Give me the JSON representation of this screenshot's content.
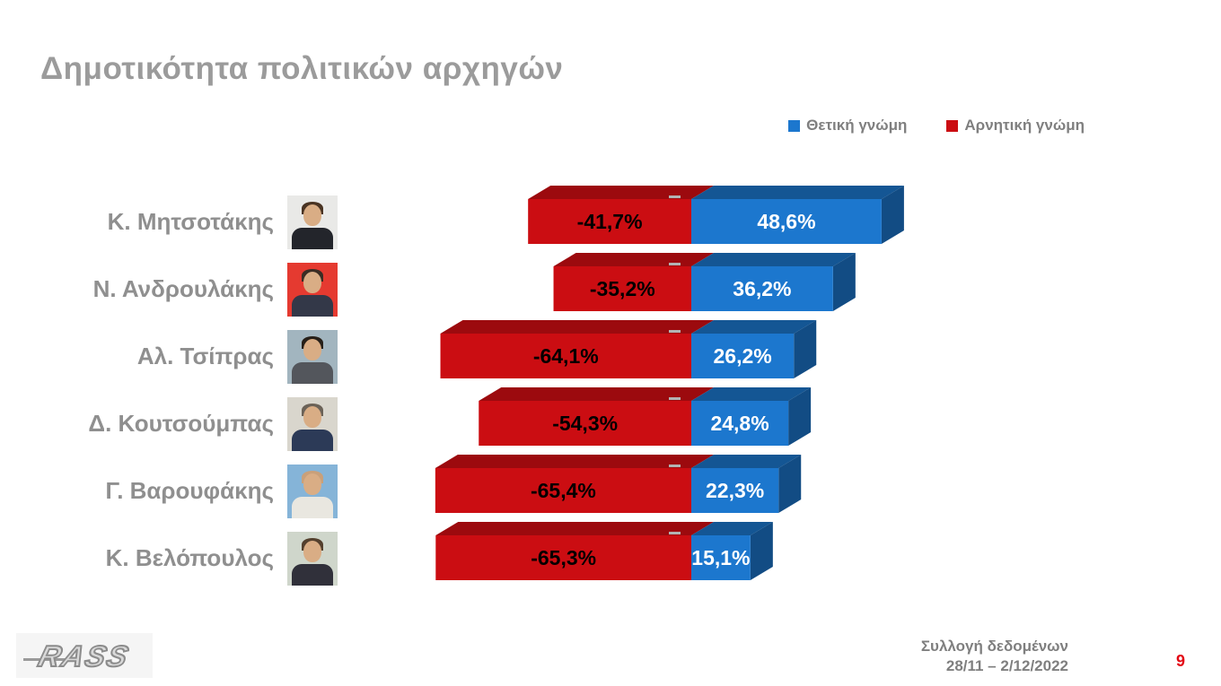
{
  "title": "Δημοτικότητα πολιτικών αρχηγών",
  "chart_data": {
    "type": "bar",
    "subtype": "horizontal-diverging-3d",
    "title": "Δημοτικότητα πολιτικών αρχηγών",
    "legend_position": "top-right",
    "grid": false,
    "value_axis_range": [
      -80,
      55
    ],
    "series": [
      {
        "name": "Θετική γνώμη",
        "direction": "positive",
        "color": "#1c77ce"
      },
      {
        "name": "Αρνητική γνώμη",
        "direction": "negative",
        "color": "#cb0d12"
      }
    ],
    "categories": [
      "Κ. Μητσοτάκης",
      "Ν. Ανδρουλάκης",
      "Αλ. Τσίπρας",
      "Δ. Κουτσούμπας",
      "Γ. Βαρουφάκης",
      "Κ. Βελόπουλος"
    ],
    "rows": [
      {
        "category": "Κ. Μητσοτάκης",
        "positive": 48.6,
        "negative": -41.7,
        "positive_label": "48,6%",
        "negative_label": "-41,7%"
      },
      {
        "category": "Ν. Ανδρουλάκης",
        "positive": 36.2,
        "negative": -35.2,
        "positive_label": "36,2%",
        "negative_label": "-35,2%"
      },
      {
        "category": "Αλ. Τσίπρας",
        "positive": 26.2,
        "negative": -64.1,
        "positive_label": "26,2%",
        "negative_label": "-64,1%"
      },
      {
        "category": "Δ. Κουτσούμπας",
        "positive": 24.8,
        "negative": -54.3,
        "positive_label": "24,8%",
        "negative_label": "-54,3%"
      },
      {
        "category": "Γ. Βαρουφάκης",
        "positive": 22.3,
        "negative": -65.4,
        "positive_label": "22,3%",
        "negative_label": "-65,4%"
      },
      {
        "category": "Κ. Βελόπουλος",
        "positive": 15.1,
        "negative": -65.3,
        "positive_label": "15,1%",
        "negative_label": "-65,3%"
      }
    ]
  },
  "photos": [
    {
      "bg": "#e9e9e7",
      "suit": "#23252b",
      "hair": "#4a3423"
    },
    {
      "bg": "#e53a30",
      "suit": "#333848",
      "hair": "#3a2d24"
    },
    {
      "bg": "#a2b5bf",
      "suit": "#53565c",
      "hair": "#272019"
    },
    {
      "bg": "#d9d6cd",
      "suit": "#2c3a57",
      "hair": "#6b6257"
    },
    {
      "bg": "#85b4d8",
      "suit": "#e9e7e0",
      "hair": "#c9a07a"
    },
    {
      "bg": "#cfd6cb",
      "suit": "#30303a",
      "hair": "#54402e"
    }
  ],
  "footer": {
    "logo_text": "RASS",
    "source_line1": "Συλλογή δεδομένων",
    "source_line2": "28/11 – 2/12/2022",
    "page_number": "9",
    "page_number_color": "#e30613"
  }
}
